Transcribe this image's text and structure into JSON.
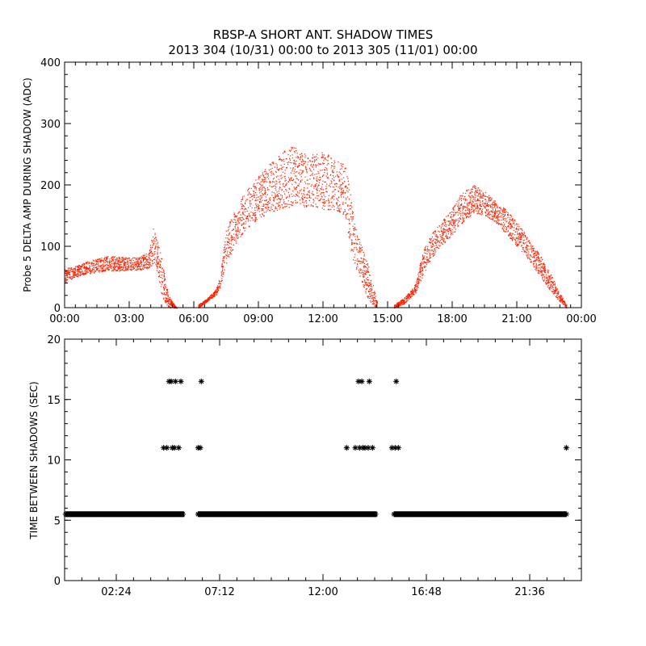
{
  "chart_data": [
    {
      "type": "scatter",
      "title": "RBSP-A SHORT ANT. SHADOW TIMES",
      "subtitle": "2013 304 (10/31) 00:00 to 2013 305 (11/01) 00:00",
      "xlabel": "",
      "ylabel": "Probe 5 DELTA AMP DURING SHADOW (ADC)",
      "x_unit": "hours",
      "xlim": [
        0,
        24
      ],
      "ylim": [
        0,
        400
      ],
      "x_ticks": [
        0,
        3,
        6,
        9,
        12,
        15,
        18,
        21,
        24
      ],
      "x_tick_labels": [
        "00:00",
        "03:00",
        "06:00",
        "09:00",
        "12:00",
        "15:00",
        "18:00",
        "21:00",
        "00:00"
      ],
      "y_ticks": [
        0,
        100,
        200,
        300,
        400
      ],
      "y_tick_labels": [
        "0",
        "100",
        "200",
        "300",
        "400"
      ],
      "grid": false,
      "marker_color": "#ff2000",
      "series": [
        {
          "segments": [
            {
              "x": [
                0.0,
                0.5,
                1.0,
                1.5,
                2.0,
                2.5,
                3.0,
                3.5,
                3.9,
                4.1,
                4.3,
                4.5,
                4.7,
                4.9,
                5.2
              ],
              "upper": [
                65,
                68,
                75,
                80,
                85,
                83,
                82,
                85,
                90,
                130,
                110,
                80,
                40,
                15,
                0
              ],
              "lower": [
                42,
                50,
                55,
                58,
                60,
                60,
                62,
                62,
                65,
                70,
                55,
                20,
                5,
                0,
                0
              ]
            },
            {
              "x": [
                6.2,
                6.6,
                7.0,
                7.2,
                7.5,
                8.0,
                8.5,
                9.0,
                9.5,
                10.0,
                10.5,
                11.0,
                11.5,
                12.0,
                12.5,
                13.0,
                13.2,
                13.4,
                13.7,
                14.0,
                14.3,
                14.5
              ],
              "upper": [
                5,
                15,
                30,
                50,
                130,
                170,
                195,
                215,
                235,
                250,
                265,
                255,
                250,
                255,
                245,
                235,
                200,
                150,
                110,
                80,
                40,
                10
              ],
              "lower": [
                0,
                10,
                20,
                30,
                70,
                110,
                130,
                145,
                155,
                160,
                165,
                165,
                165,
                160,
                160,
                150,
                110,
                70,
                50,
                20,
                5,
                0
              ]
            },
            {
              "x": [
                15.3,
                15.7,
                16.0,
                16.3,
                16.6,
                17.0,
                17.5,
                18.0,
                18.5,
                19.0,
                19.5,
                20.0,
                20.5,
                21.0,
                21.5,
                22.0,
                22.5,
                23.0,
                23.3
              ],
              "upper": [
                5,
                15,
                25,
                40,
                90,
                120,
                140,
                165,
                190,
                200,
                190,
                175,
                160,
                140,
                115,
                90,
                60,
                25,
                5
              ],
              "lower": [
                0,
                5,
                15,
                25,
                50,
                80,
                100,
                120,
                140,
                155,
                150,
                140,
                120,
                100,
                80,
                55,
                30,
                10,
                0
              ]
            }
          ]
        }
      ]
    },
    {
      "type": "scatter",
      "xlabel": "",
      "ylabel": "TIME BETWEEN SHADOWS (SEC)",
      "x_unit": "hours",
      "xlim": [
        0,
        24
      ],
      "ylim": [
        0,
        20
      ],
      "x_ticks": [
        2.4,
        7.2,
        12.0,
        16.8,
        21.6
      ],
      "x_tick_labels": [
        "02:24",
        "07:12",
        "12:00",
        "16:48",
        "21:36"
      ],
      "y_ticks": [
        0,
        5,
        10,
        15,
        20
      ],
      "y_tick_labels": [
        "0",
        "5",
        "10",
        "15",
        "20"
      ],
      "grid": false,
      "marker": "asterisk",
      "marker_color": "#000000",
      "series": [
        {
          "baseline_ranges": [
            [
              0.05,
              5.55
            ],
            [
              6.2,
              14.5
            ],
            [
              15.3,
              23.3
            ]
          ],
          "baseline_value": 5.5,
          "points": [
            [
              4.6,
              11.0
            ],
            [
              4.75,
              11.0
            ],
            [
              4.85,
              16.5
            ],
            [
              4.95,
              16.5
            ],
            [
              5.0,
              11.0
            ],
            [
              5.1,
              11.0
            ],
            [
              5.15,
              16.5
            ],
            [
              5.3,
              11.0
            ],
            [
              5.4,
              16.5
            ],
            [
              6.2,
              11.0
            ],
            [
              6.3,
              11.0
            ],
            [
              6.35,
              16.5
            ],
            [
              13.1,
              11.0
            ],
            [
              13.5,
              11.0
            ],
            [
              13.65,
              16.5
            ],
            [
              13.7,
              11.0
            ],
            [
              13.8,
              16.5
            ],
            [
              13.85,
              11.0
            ],
            [
              13.95,
              11.0
            ],
            [
              14.1,
              11.0
            ],
            [
              14.15,
              16.5
            ],
            [
              14.3,
              11.0
            ],
            [
              15.2,
              11.0
            ],
            [
              15.35,
              11.0
            ],
            [
              15.4,
              16.5
            ],
            [
              15.5,
              11.0
            ],
            [
              23.3,
              11.0
            ]
          ]
        }
      ]
    }
  ]
}
